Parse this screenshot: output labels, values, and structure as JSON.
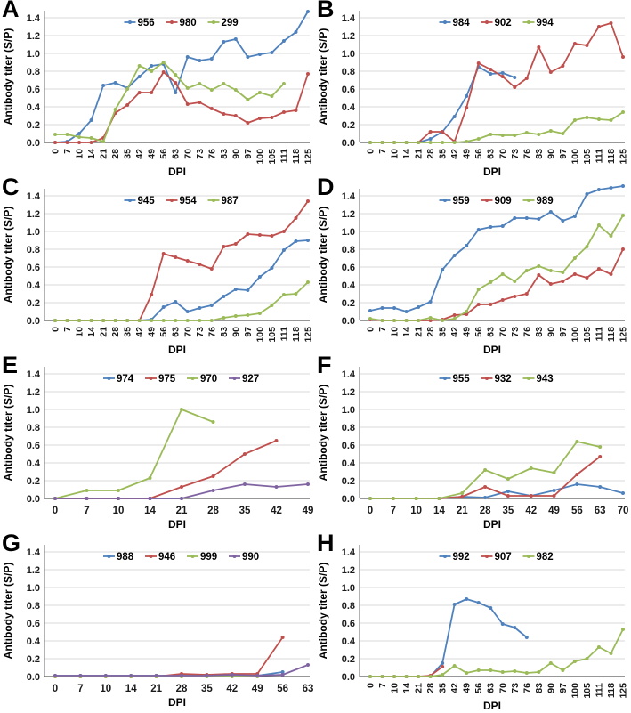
{
  "figure": {
    "background": "#FFFFFF",
    "grid": "horizontal-only",
    "grid_color": "#D9D9D9",
    "axis_color": "#808080",
    "baseline_color": "#595959",
    "text_color": "#1a1a1a",
    "legend_position": "top-inside-center",
    "series_colors": {
      "blue": "#4F81BD",
      "red": "#C0504D",
      "green": "#9BBB59",
      "purple": "#8064A2"
    }
  },
  "chart_data": [
    {
      "panel": "A",
      "type": "line",
      "xlabel": "DPI",
      "ylabel": "Antibody titer (S/P)",
      "ylim": [
        0,
        1.4
      ],
      "y_ticks": [
        0.0,
        0.2,
        0.4,
        0.6,
        0.8,
        1.0,
        1.2,
        1.4
      ],
      "x_ticks_rotated": true,
      "categories": [
        0,
        7,
        10,
        14,
        21,
        28,
        35,
        42,
        49,
        56,
        63,
        70,
        73,
        76,
        83,
        90,
        97,
        100,
        105,
        111,
        118,
        125
      ],
      "series": [
        {
          "name": "956",
          "color": "#4F81BD",
          "values": [
            0,
            0.01,
            0.1,
            0.25,
            0.64,
            0.67,
            0.61,
            0.74,
            0.86,
            0.88,
            0.56,
            0.96,
            0.92,
            0.94,
            1.13,
            1.16,
            0.96,
            0.99,
            1.01,
            1.14,
            1.24,
            1.47
          ]
        },
        {
          "name": "980",
          "color": "#C0504D",
          "values": [
            0,
            0,
            0,
            0,
            0.05,
            0.33,
            0.42,
            0.56,
            0.56,
            0.79,
            0.67,
            0.43,
            0.45,
            0.38,
            0.32,
            0.3,
            0.22,
            0.27,
            0.28,
            0.34,
            0.36,
            0.77
          ]
        },
        {
          "name": "299",
          "color": "#9BBB59",
          "values": [
            0.09,
            0.09,
            0.06,
            0.05,
            0.01,
            0.37,
            0.6,
            0.86,
            0.8,
            0.9,
            0.76,
            0.61,
            0.66,
            0.59,
            0.66,
            0.59,
            0.48,
            0.56,
            0.52,
            0.66,
            null,
            null
          ]
        }
      ]
    },
    {
      "panel": "B",
      "type": "line",
      "xlabel": "DPI",
      "ylabel": "Antibody titer (S/P)",
      "ylim": [
        0,
        1.4
      ],
      "y_ticks": [
        0.0,
        0.2,
        0.4,
        0.6,
        0.8,
        1.0,
        1.2,
        1.4
      ],
      "x_ticks_rotated": true,
      "categories": [
        0,
        7,
        10,
        14,
        21,
        28,
        35,
        42,
        49,
        56,
        63,
        70,
        73,
        76,
        83,
        90,
        97,
        100,
        105,
        111,
        118,
        125
      ],
      "series": [
        {
          "name": "984",
          "color": "#4F81BD",
          "values": [
            0,
            0,
            0,
            0,
            0,
            0.04,
            0.12,
            0.29,
            0.52,
            0.85,
            0.77,
            0.78,
            0.73,
            null,
            null,
            null,
            null,
            null,
            null,
            null,
            null,
            null
          ]
        },
        {
          "name": "902",
          "color": "#C0504D",
          "values": [
            0,
            0,
            0,
            0,
            0,
            0.12,
            0.12,
            0.01,
            0.39,
            0.89,
            0.82,
            0.74,
            0.62,
            0.72,
            1.07,
            0.79,
            0.86,
            1.11,
            1.09,
            1.3,
            1.34,
            0.96
          ]
        },
        {
          "name": "994",
          "color": "#9BBB59",
          "values": [
            0,
            0,
            0,
            0,
            0,
            0,
            0,
            0,
            0.01,
            0.04,
            0.09,
            0.08,
            0.08,
            0.11,
            0.09,
            0.13,
            0.1,
            0.25,
            0.28,
            0.26,
            0.25,
            0.34
          ]
        }
      ]
    },
    {
      "panel": "C",
      "type": "line",
      "xlabel": "DPI",
      "ylabel": "Antibody titer (S/P)",
      "ylim": [
        0,
        1.4
      ],
      "y_ticks": [
        0.0,
        0.2,
        0.4,
        0.6,
        0.8,
        1.0,
        1.2,
        1.4
      ],
      "x_ticks_rotated": true,
      "categories": [
        0,
        7,
        10,
        14,
        21,
        28,
        35,
        42,
        49,
        56,
        63,
        70,
        73,
        76,
        83,
        90,
        97,
        100,
        105,
        111,
        118,
        125
      ],
      "series": [
        {
          "name": "945",
          "color": "#4F81BD",
          "values": [
            0,
            0,
            0,
            0,
            0,
            0,
            0,
            0,
            0.01,
            0.15,
            0.21,
            0.1,
            0.14,
            0.17,
            0.27,
            0.35,
            0.34,
            0.49,
            0.59,
            0.79,
            0.89,
            0.9
          ]
        },
        {
          "name": "954",
          "color": "#C0504D",
          "values": [
            0,
            0,
            0,
            0,
            0,
            0,
            0,
            0,
            0.29,
            0.75,
            0.71,
            0.67,
            0.63,
            0.58,
            0.83,
            0.86,
            0.97,
            0.96,
            0.95,
            1.0,
            1.15,
            1.34
          ]
        },
        {
          "name": "987",
          "color": "#9BBB59",
          "values": [
            0,
            0,
            0,
            0,
            0,
            0,
            0,
            0,
            0,
            0,
            0,
            0,
            0,
            0,
            0.03,
            0.05,
            0.06,
            0.08,
            0.17,
            0.29,
            0.3,
            0.43
          ]
        }
      ]
    },
    {
      "panel": "D",
      "type": "line",
      "xlabel": "DPI",
      "ylabel": "Antibody titer (S/P)",
      "ylim": [
        0,
        1.4
      ],
      "y_ticks": [
        0.0,
        0.2,
        0.4,
        0.6,
        0.8,
        1.0,
        1.2,
        1.4
      ],
      "x_ticks_rotated": true,
      "categories": [
        0,
        7,
        10,
        14,
        21,
        28,
        35,
        42,
        49,
        56,
        63,
        70,
        73,
        76,
        83,
        90,
        97,
        100,
        105,
        111,
        118,
        125
      ],
      "series": [
        {
          "name": "959",
          "color": "#4F81BD",
          "values": [
            0.11,
            0.14,
            0.14,
            0.1,
            0.15,
            0.21,
            0.57,
            0.73,
            0.84,
            1.02,
            1.05,
            1.06,
            1.15,
            1.15,
            1.14,
            1.22,
            1.12,
            1.17,
            1.42,
            1.47,
            1.49,
            1.51
          ]
        },
        {
          "name": "909",
          "color": "#C0504D",
          "values": [
            0.01,
            0,
            0,
            0,
            0,
            0,
            0.01,
            0.06,
            0.07,
            0.18,
            0.18,
            0.23,
            0.27,
            0.3,
            0.51,
            0.41,
            0.44,
            0.52,
            0.48,
            0.58,
            0.52,
            0.8
          ]
        },
        {
          "name": "989",
          "color": "#9BBB59",
          "values": [
            0.02,
            0,
            0,
            0,
            0,
            0.03,
            0,
            0.02,
            0.1,
            0.35,
            0.43,
            0.52,
            0.44,
            0.56,
            0.61,
            0.56,
            0.54,
            0.7,
            0.83,
            1.07,
            0.95,
            1.18
          ]
        }
      ]
    },
    {
      "panel": "E",
      "type": "line",
      "xlabel": "DPI",
      "ylabel": "Antibody titer (S/P)",
      "ylim": [
        0,
        1.4
      ],
      "y_ticks": [
        0.0,
        0.2,
        0.4,
        0.6,
        0.8,
        1.0,
        1.2,
        1.4
      ],
      "x_ticks_rotated": false,
      "categories": [
        0,
        7,
        10,
        14,
        21,
        28,
        35,
        42,
        49
      ],
      "series": [
        {
          "name": "974",
          "color": "#4F81BD",
          "values": [
            0,
            0,
            0,
            0,
            0,
            null,
            null,
            null,
            null
          ]
        },
        {
          "name": "975",
          "color": "#C0504D",
          "values": [
            0,
            0,
            0,
            0,
            0.13,
            0.25,
            0.5,
            0.65,
            null
          ]
        },
        {
          "name": "970",
          "color": "#9BBB59",
          "values": [
            0,
            0.09,
            0.09,
            0.23,
            1.0,
            0.86,
            null,
            null,
            null
          ]
        },
        {
          "name": "927",
          "color": "#8064A2",
          "values": [
            0,
            0,
            0,
            0,
            0,
            0.09,
            0.16,
            0.13,
            0.16
          ]
        }
      ]
    },
    {
      "panel": "F",
      "type": "line",
      "xlabel": "DPI",
      "ylabel": "Antibody titer (S/P)",
      "ylim": [
        0,
        1.4
      ],
      "y_ticks": [
        0.0,
        0.2,
        0.4,
        0.6,
        0.8,
        1.0,
        1.2,
        1.4
      ],
      "x_ticks_rotated": false,
      "categories": [
        0,
        7,
        10,
        14,
        21,
        28,
        35,
        42,
        49,
        56,
        63,
        70
      ],
      "series": [
        {
          "name": "955",
          "color": "#4F81BD",
          "values": [
            0,
            0,
            0,
            0,
            0.02,
            0.01,
            0.08,
            0.03,
            0.09,
            0.16,
            0.13,
            0.06
          ]
        },
        {
          "name": "932",
          "color": "#C0504D",
          "values": [
            0,
            0,
            0,
            0,
            0.02,
            0.13,
            0.03,
            0.03,
            0.03,
            0.27,
            0.47,
            null
          ]
        },
        {
          "name": "943",
          "color": "#9BBB59",
          "values": [
            0,
            0,
            0,
            0,
            0.06,
            0.32,
            0.22,
            0.34,
            0.29,
            0.64,
            0.58,
            null
          ]
        }
      ]
    },
    {
      "panel": "G",
      "type": "line",
      "xlabel": "DPI",
      "ylabel": "Antibody titer (S/P)",
      "ylim": [
        0,
        1.4
      ],
      "y_ticks": [
        0.0,
        0.2,
        0.4,
        0.6,
        0.8,
        1.0,
        1.2,
        1.4
      ],
      "x_ticks_rotated": false,
      "categories": [
        0,
        7,
        10,
        14,
        21,
        28,
        35,
        42,
        49,
        56,
        63
      ],
      "series": [
        {
          "name": "988",
          "color": "#4F81BD",
          "values": [
            0.01,
            0.01,
            0.01,
            0.01,
            0.01,
            0.01,
            0.01,
            0.01,
            0.01,
            0.05,
            null
          ]
        },
        {
          "name": "946",
          "color": "#C0504D",
          "values": [
            0,
            0,
            0,
            0,
            0,
            0.03,
            0.02,
            0.03,
            0.03,
            0.44,
            null
          ]
        },
        {
          "name": "999",
          "color": "#9BBB59",
          "values": [
            0,
            0,
            0,
            0,
            0,
            0,
            0,
            0,
            0,
            null,
            null
          ]
        },
        {
          "name": "990",
          "color": "#8064A2",
          "values": [
            0.01,
            0.01,
            0.01,
            0.01,
            0.01,
            0.01,
            0.01,
            0.02,
            0.01,
            0.02,
            0.13
          ]
        }
      ]
    },
    {
      "panel": "H",
      "type": "line",
      "xlabel": "DPI",
      "ylabel": "Antibody titer (S/P)",
      "ylim": [
        0,
        1.4
      ],
      "y_ticks": [
        0.0,
        0.2,
        0.4,
        0.6,
        0.8,
        1.0,
        1.2,
        1.4
      ],
      "x_ticks_rotated": true,
      "categories": [
        0,
        7,
        10,
        14,
        21,
        28,
        35,
        42,
        49,
        56,
        63,
        70,
        73,
        76,
        83,
        90,
        97,
        100,
        105,
        111,
        118,
        125
      ],
      "series": [
        {
          "name": "992",
          "color": "#4F81BD",
          "values": [
            0,
            0,
            0,
            0,
            0,
            0,
            0.15,
            0.81,
            0.87,
            0.83,
            0.77,
            0.59,
            0.55,
            0.44,
            null,
            null,
            null,
            null,
            null,
            null,
            null,
            null
          ]
        },
        {
          "name": "907",
          "color": "#C0504D",
          "values": [
            0,
            0,
            0,
            0,
            0,
            0.01,
            0.11,
            null,
            null,
            null,
            null,
            null,
            null,
            null,
            null,
            null,
            null,
            null,
            null,
            null,
            null,
            null
          ]
        },
        {
          "name": "982",
          "color": "#9BBB59",
          "values": [
            0,
            0,
            0,
            0,
            0,
            0,
            0.02,
            0.12,
            0.04,
            0.07,
            0.07,
            0.05,
            0.06,
            0.04,
            0.05,
            0.15,
            0.07,
            0.17,
            0.2,
            0.33,
            0.26,
            0.53
          ]
        }
      ]
    }
  ]
}
